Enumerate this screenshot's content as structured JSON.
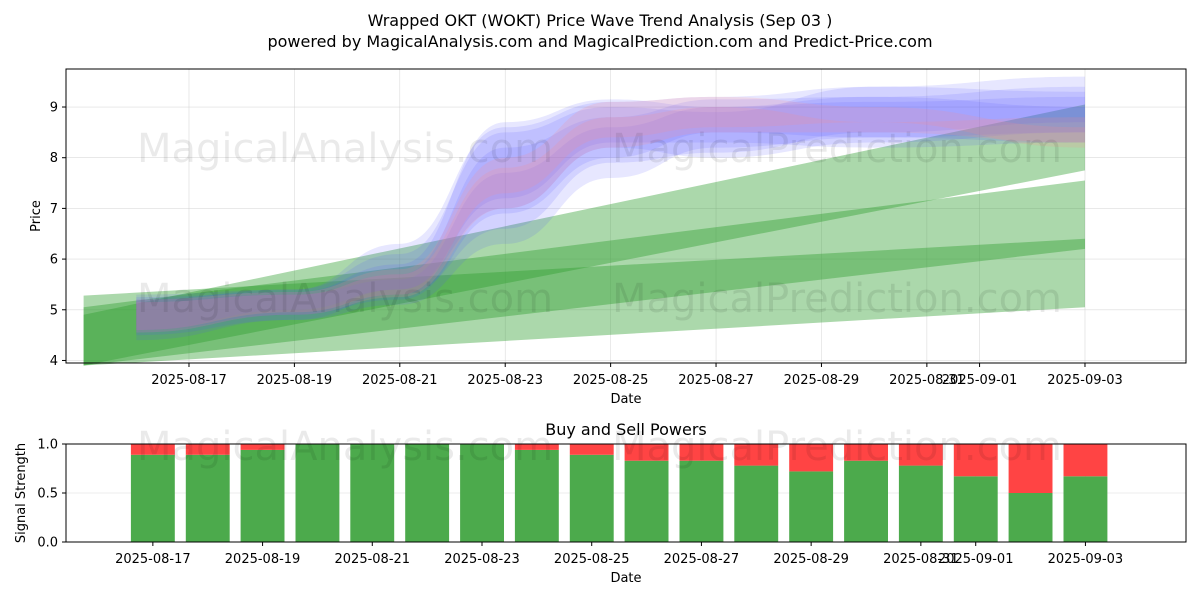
{
  "header": {
    "title": "Wrapped OKT (WOKT) Price Wave Trend Analysis (Sep 03 )",
    "subtitle": "powered by MagicalAnalysis.com and MagicalPrediction.com and Predict-Price.com"
  },
  "watermarks": [
    "MagicalAnalysis.com",
    "MagicalPrediction.com"
  ],
  "colors": {
    "green_band": "#2e9e2e",
    "blue_band": "#5555ff",
    "red_band": "#ff8888",
    "buy": "#4caa4c",
    "sell": "#ff4444",
    "grid": "#cccccc"
  },
  "chart_data": [
    {
      "type": "area",
      "title": "",
      "xlabel": "Date",
      "ylabel": "Price",
      "ylim": [
        3.95,
        9.75
      ],
      "xlim": [
        "2025-08-14T16:00",
        "2025-09-04T22:00"
      ],
      "yticks": [
        4,
        5,
        6,
        7,
        8,
        9
      ],
      "xticks": [
        "2025-08-17",
        "2025-08-19",
        "2025-08-21",
        "2025-08-23",
        "2025-08-25",
        "2025-08-27",
        "2025-08-29",
        "2025-08-31",
        "2025-09-01",
        "2025-09-03"
      ],
      "xtick_labels": [
        "2025-08-17",
        "2025-08-19",
        "2025-08-21",
        "2025-08-23",
        "2025-08-25",
        "2025-08-27",
        "2025-08-29",
        "2025-08-31",
        "2025-09-01",
        "2025-09-03"
      ],
      "grid": true,
      "green_bands": [
        {
          "upper": [
            [
              "2025-08-15",
              5.28
            ],
            [
              "2025-09-03",
              6.4
            ]
          ],
          "lower": [
            [
              "2025-08-15",
              3.9
            ],
            [
              "2025-09-03",
              5.05
            ]
          ]
        },
        {
          "upper": [
            [
              "2025-08-15",
              4.9
            ],
            [
              "2025-09-03",
              9.05
            ]
          ],
          "lower": [
            [
              "2025-08-15",
              3.9
            ],
            [
              "2025-09-03",
              7.75
            ]
          ]
        },
        {
          "upper": [
            [
              "2025-08-15",
              5.05
            ],
            [
              "2025-09-03",
              7.55
            ]
          ],
          "lower": [
            [
              "2025-08-15",
              3.9
            ],
            [
              "2025-09-03",
              6.2
            ]
          ]
        }
      ],
      "wave_series": [
        {
          "color": "blue",
          "upper": [
            5.25,
            5.35,
            5.9,
            8.7,
            9.15,
            9.0,
            9.2,
            9.4
          ],
          "lower": [
            4.55,
            4.9,
            5.4,
            7.2,
            8.3,
            8.3,
            8.2,
            8.3
          ]
        },
        {
          "color": "blue",
          "upper": [
            5.2,
            5.3,
            5.7,
            8.2,
            8.8,
            9.15,
            9.2,
            9.0
          ],
          "lower": [
            4.6,
            4.9,
            5.2,
            6.9,
            8.0,
            8.5,
            8.4,
            8.5
          ]
        },
        {
          "color": "blue",
          "upper": [
            5.2,
            5.4,
            6.1,
            8.5,
            9.0,
            8.9,
            9.4,
            9.6
          ],
          "lower": [
            4.5,
            4.8,
            5.3,
            6.6,
            7.9,
            8.1,
            8.5,
            8.7
          ]
        },
        {
          "color": "blue",
          "upper": [
            5.15,
            5.3,
            5.6,
            7.7,
            8.6,
            9.0,
            9.1,
            9.2
          ],
          "lower": [
            4.4,
            4.8,
            5.1,
            6.3,
            7.6,
            8.2,
            8.4,
            8.3
          ]
        },
        {
          "color": "blue",
          "upper": [
            5.3,
            5.4,
            6.3,
            8.6,
            9.1,
            9.2,
            9.4,
            9.3
          ],
          "lower": [
            4.6,
            5.0,
            5.4,
            7.0,
            8.2,
            8.0,
            8.3,
            8.5
          ]
        },
        {
          "color": "red",
          "upper": [
            5.2,
            5.35,
            5.8,
            8.0,
            9.1,
            9.2,
            9.0,
            8.6
          ],
          "lower": [
            4.6,
            4.95,
            5.3,
            7.3,
            8.4,
            8.6,
            8.7,
            8.2
          ]
        },
        {
          "color": "red",
          "upper": [
            5.15,
            5.3,
            5.7,
            7.8,
            8.8,
            9.0,
            8.7,
            8.8
          ],
          "lower": [
            4.55,
            4.9,
            5.25,
            7.0,
            8.2,
            8.5,
            8.5,
            8.3
          ]
        }
      ],
      "wave_x": [
        "2025-08-16",
        "2025-08-19",
        "2025-08-21",
        "2025-08-23",
        "2025-08-25",
        "2025-08-27",
        "2025-08-30",
        "2025-09-03"
      ]
    },
    {
      "type": "bar",
      "title": "Buy and Sell Powers",
      "xlabel": "Date",
      "ylabel": "Signal Strength",
      "ylim": [
        0.0,
        1.0
      ],
      "yticks": [
        0.0,
        0.5,
        1.0
      ],
      "ytick_labels": [
        "0.0",
        "0.5",
        "1.0"
      ],
      "categories": [
        "2025-08-17",
        "2025-08-18",
        "2025-08-19",
        "2025-08-20",
        "2025-08-21",
        "2025-08-22",
        "2025-08-23",
        "2025-08-24",
        "2025-08-25",
        "2025-08-26",
        "2025-08-27",
        "2025-08-28",
        "2025-08-29",
        "2025-08-30",
        "2025-08-31",
        "2025-09-01",
        "2025-09-02",
        "2025-09-03"
      ],
      "series": [
        {
          "values": [
            0.89,
            0.89,
            0.94,
            1.0,
            1.0,
            1.0,
            1.0,
            0.94,
            0.89,
            0.83,
            0.83,
            0.78,
            0.72,
            0.83,
            0.78,
            0.67,
            0.5,
            0.67
          ]
        },
        {
          "values": [
            0.11,
            0.11,
            0.06,
            0.0,
            0.0,
            0.0,
            0.0,
            0.06,
            0.11,
            0.17,
            0.17,
            0.22,
            0.28,
            0.17,
            0.22,
            0.33,
            0.5,
            0.33
          ]
        }
      ],
      "xticks": [
        "2025-08-17",
        "2025-08-19",
        "2025-08-21",
        "2025-08-23",
        "2025-08-25",
        "2025-08-27",
        "2025-08-29",
        "2025-08-31",
        "2025-09-01",
        "2025-09-03"
      ],
      "xtick_labels": [
        "2025-08-17",
        "2025-08-19",
        "2025-08-21",
        "2025-08-23",
        "2025-08-25",
        "2025-08-27",
        "2025-08-29",
        "2025-08-31",
        "2025-09-01",
        "2025-09-03"
      ],
      "grid": true
    }
  ]
}
